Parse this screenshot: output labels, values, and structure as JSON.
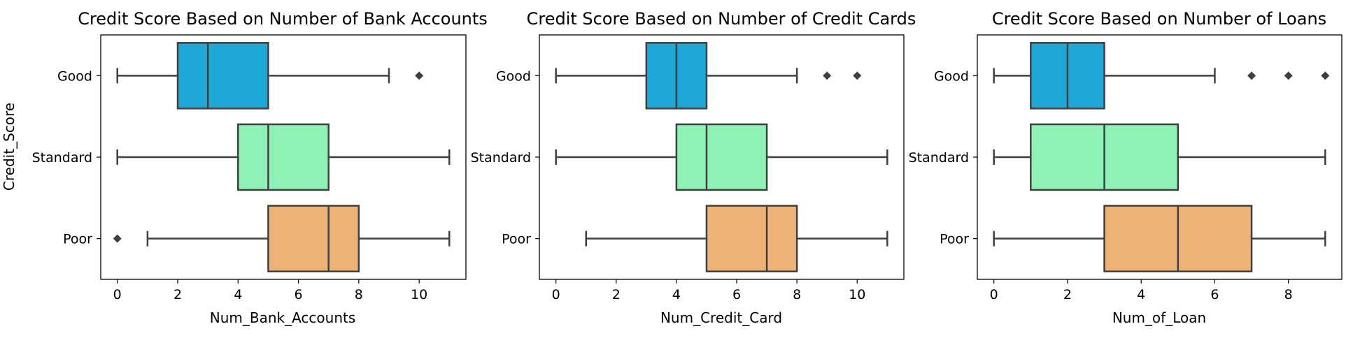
{
  "chart_data": [
    {
      "type": "box",
      "title": "Credit Score Based on Number of Bank Accounts",
      "xlabel": "Num_Bank_Accounts",
      "ylabel": "Credit_Score",
      "xlim": [
        -0.55,
        11.55
      ],
      "xticks": [
        0,
        2,
        4,
        6,
        8,
        10
      ],
      "categories": [
        "Good",
        "Standard",
        "Poor"
      ],
      "boxes": [
        {
          "category": "Good",
          "whislo": 0,
          "q1": 2,
          "median": 3,
          "q3": 5,
          "whishi": 9,
          "fliers": [
            10
          ],
          "color": "#1ea8d8"
        },
        {
          "category": "Standard",
          "whislo": 0,
          "q1": 4,
          "median": 5,
          "q3": 7,
          "whishi": 11,
          "fliers": [],
          "color": "#8ef1b6"
        },
        {
          "category": "Poor",
          "whislo": 1,
          "q1": 5,
          "median": 7,
          "q3": 8,
          "whishi": 11,
          "fliers": [
            0
          ],
          "color": "#ecb276"
        }
      ]
    },
    {
      "type": "box",
      "title": "Credit Score Based on Number of Credit Cards",
      "xlabel": "Num_Credit_Card",
      "ylabel": "",
      "xlim": [
        -0.55,
        11.55
      ],
      "xticks": [
        0,
        2,
        4,
        6,
        8,
        10
      ],
      "categories": [
        "Good",
        "Standard",
        "Poor"
      ],
      "boxes": [
        {
          "category": "Good",
          "whislo": 0,
          "q1": 3,
          "median": 4,
          "q3": 5,
          "whishi": 8,
          "fliers": [
            9,
            10
          ],
          "color": "#1ea8d8"
        },
        {
          "category": "Standard",
          "whislo": 0,
          "q1": 4,
          "median": 5,
          "q3": 7,
          "whishi": 11,
          "fliers": [],
          "color": "#8ef1b6"
        },
        {
          "category": "Poor",
          "whislo": 1,
          "q1": 5,
          "median": 7,
          "q3": 8,
          "whishi": 11,
          "fliers": [],
          "color": "#ecb276"
        }
      ]
    },
    {
      "type": "box",
      "title": "Credit Score Based on Number of Loans",
      "xlabel": "Num_of_Loan",
      "ylabel": "",
      "xlim": [
        -0.45,
        9.45
      ],
      "xticks": [
        0,
        2,
        4,
        6,
        8
      ],
      "categories": [
        "Good",
        "Standard",
        "Poor"
      ],
      "boxes": [
        {
          "category": "Good",
          "whislo": 0,
          "q1": 1,
          "median": 2,
          "q3": 3,
          "whishi": 6,
          "fliers": [
            7,
            8,
            9
          ],
          "color": "#1ea8d8"
        },
        {
          "category": "Standard",
          "whislo": 0,
          "q1": 1,
          "median": 3,
          "q3": 5,
          "whishi": 9,
          "fliers": [],
          "color": "#8ef1b6"
        },
        {
          "category": "Poor",
          "whislo": 0,
          "q1": 3,
          "median": 5,
          "q3": 7,
          "whishi": 9,
          "fliers": [],
          "color": "#ecb276"
        }
      ]
    }
  ],
  "style": {
    "line_color": "#3f3f3f",
    "flier_color": "#3f3f3f"
  }
}
